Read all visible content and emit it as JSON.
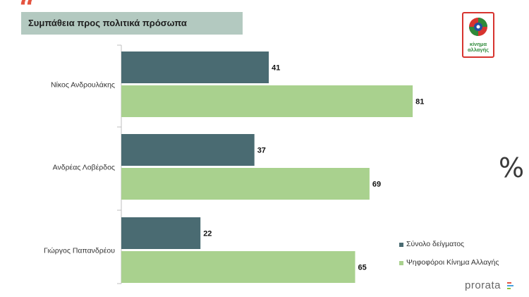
{
  "header": {
    "quote_glyph": "“",
    "title": "Συμπάθεια προς πολιτικά πρόσωπα"
  },
  "logo": {
    "line1": "κίνημα",
    "line2": "αλλαγής"
  },
  "percent_symbol": "%",
  "brand": {
    "name": "prorata"
  },
  "colors": {
    "series1": "#4a6b72",
    "series2": "#a9d18e",
    "title_bg": "#b3c9c0",
    "accent_red": "#e4533f"
  },
  "chart_data": {
    "type": "bar",
    "orientation": "horizontal",
    "categories": [
      "Νίκος Ανδρουλάκης",
      "Ανδρέας Λοβέρδος",
      "Γιώργος Παπανδρέου"
    ],
    "series": [
      {
        "name": "Σύνολο δείγματος",
        "values": [
          41,
          37,
          22
        ]
      },
      {
        "name": "Ψηφοφόροι Κίνημα Αλλαγής",
        "values": [
          81,
          69,
          65
        ]
      }
    ],
    "title": "Συμπάθεια προς πολιτικά πρόσωπα",
    "xlim": [
      0,
      100
    ],
    "grid": false,
    "legend_position": "bottom-right",
    "data_labels": true
  }
}
